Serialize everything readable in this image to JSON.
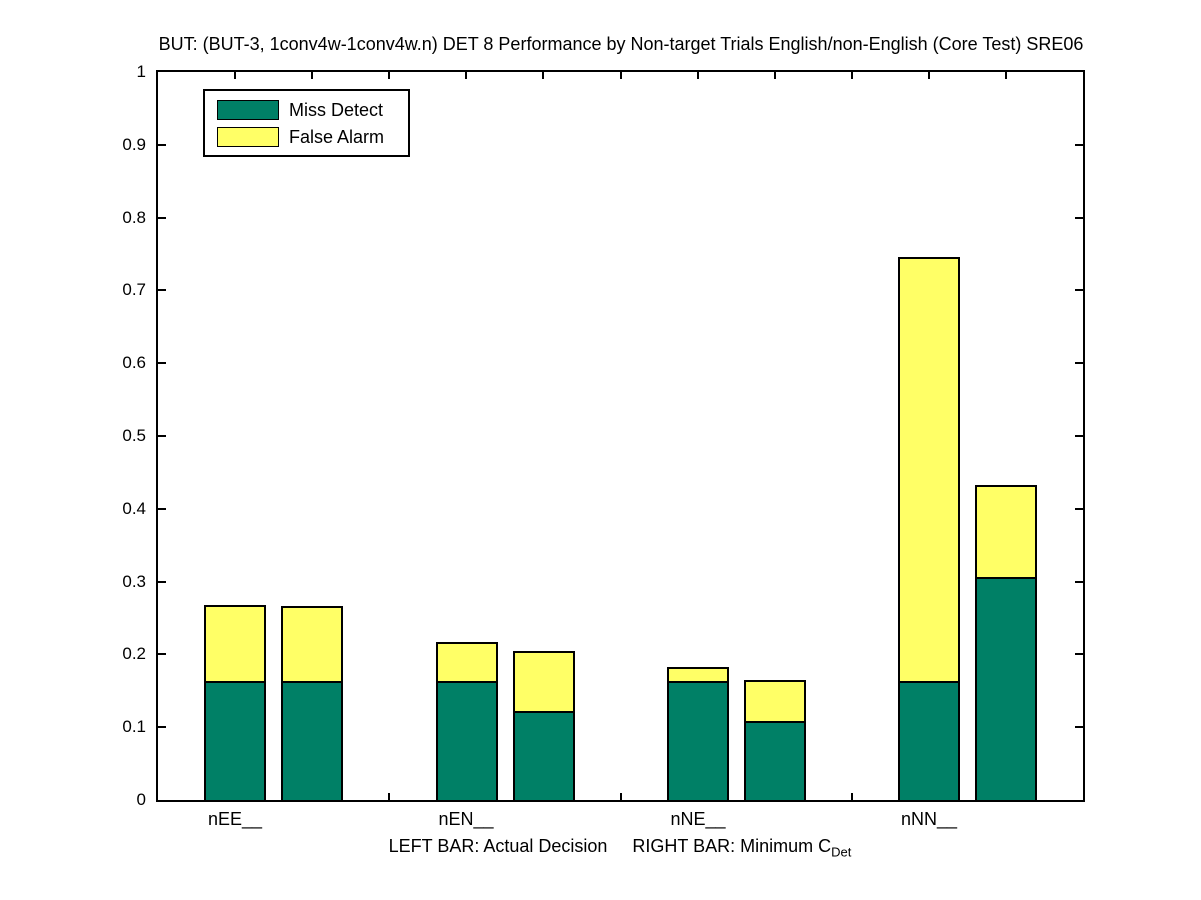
{
  "chart_data": {
    "type": "bar",
    "variant": "paired-stacked-bars",
    "title": "BUT: (BUT-3, 1conv4w-1conv4w.n) DET 8 Performance by Non-target Trials English/non-English (Core Test) SRE06",
    "xlabel_main": "LEFT BAR: Actual Decision     RIGHT BAR: Minimum C",
    "xlabel_sub": "Det",
    "ylim": [
      0,
      1
    ],
    "ytick_labels": [
      "0",
      "0.1",
      "0.2",
      "0.3",
      "0.4",
      "0.5",
      "0.6",
      "0.7",
      "0.8",
      "0.9",
      "1"
    ],
    "grid": false,
    "legend": {
      "position": "top-left",
      "entries": [
        {
          "label": "Miss Detect",
          "color": "#008066"
        },
        {
          "label": "False Alarm",
          "color": "#ffff66"
        }
      ]
    },
    "bar_meaning": {
      "left": "Actual Decision",
      "right": "Minimum CDet"
    },
    "categories": [
      "nEE__",
      "nEN__",
      "nNE__",
      "nNN__"
    ],
    "groups": [
      {
        "label": "nEE__",
        "left_bar": {
          "miss_detect": 0.163,
          "false_alarm": 0.105,
          "total": 0.268
        },
        "right_bar": {
          "miss_detect": 0.163,
          "false_alarm": 0.103,
          "total": 0.266
        }
      },
      {
        "label": "nEN__",
        "left_bar": {
          "miss_detect": 0.163,
          "false_alarm": 0.054,
          "total": 0.217
        },
        "right_bar": {
          "miss_detect": 0.122,
          "false_alarm": 0.082,
          "total": 0.204
        }
      },
      {
        "label": "nNE__",
        "left_bar": {
          "miss_detect": 0.163,
          "false_alarm": 0.019,
          "total": 0.182
        },
        "right_bar": {
          "miss_detect": 0.108,
          "false_alarm": 0.056,
          "total": 0.164
        }
      },
      {
        "label": "nNN__",
        "left_bar": {
          "miss_detect": 0.163,
          "false_alarm": 0.582,
          "total": 0.745
        },
        "right_bar": {
          "miss_detect": 0.306,
          "false_alarm": 0.127,
          "total": 0.433
        }
      }
    ],
    "colors": {
      "miss_detect": "#008066",
      "false_alarm": "#ffff66",
      "axis": "#000000",
      "background": "#ffffff"
    }
  }
}
